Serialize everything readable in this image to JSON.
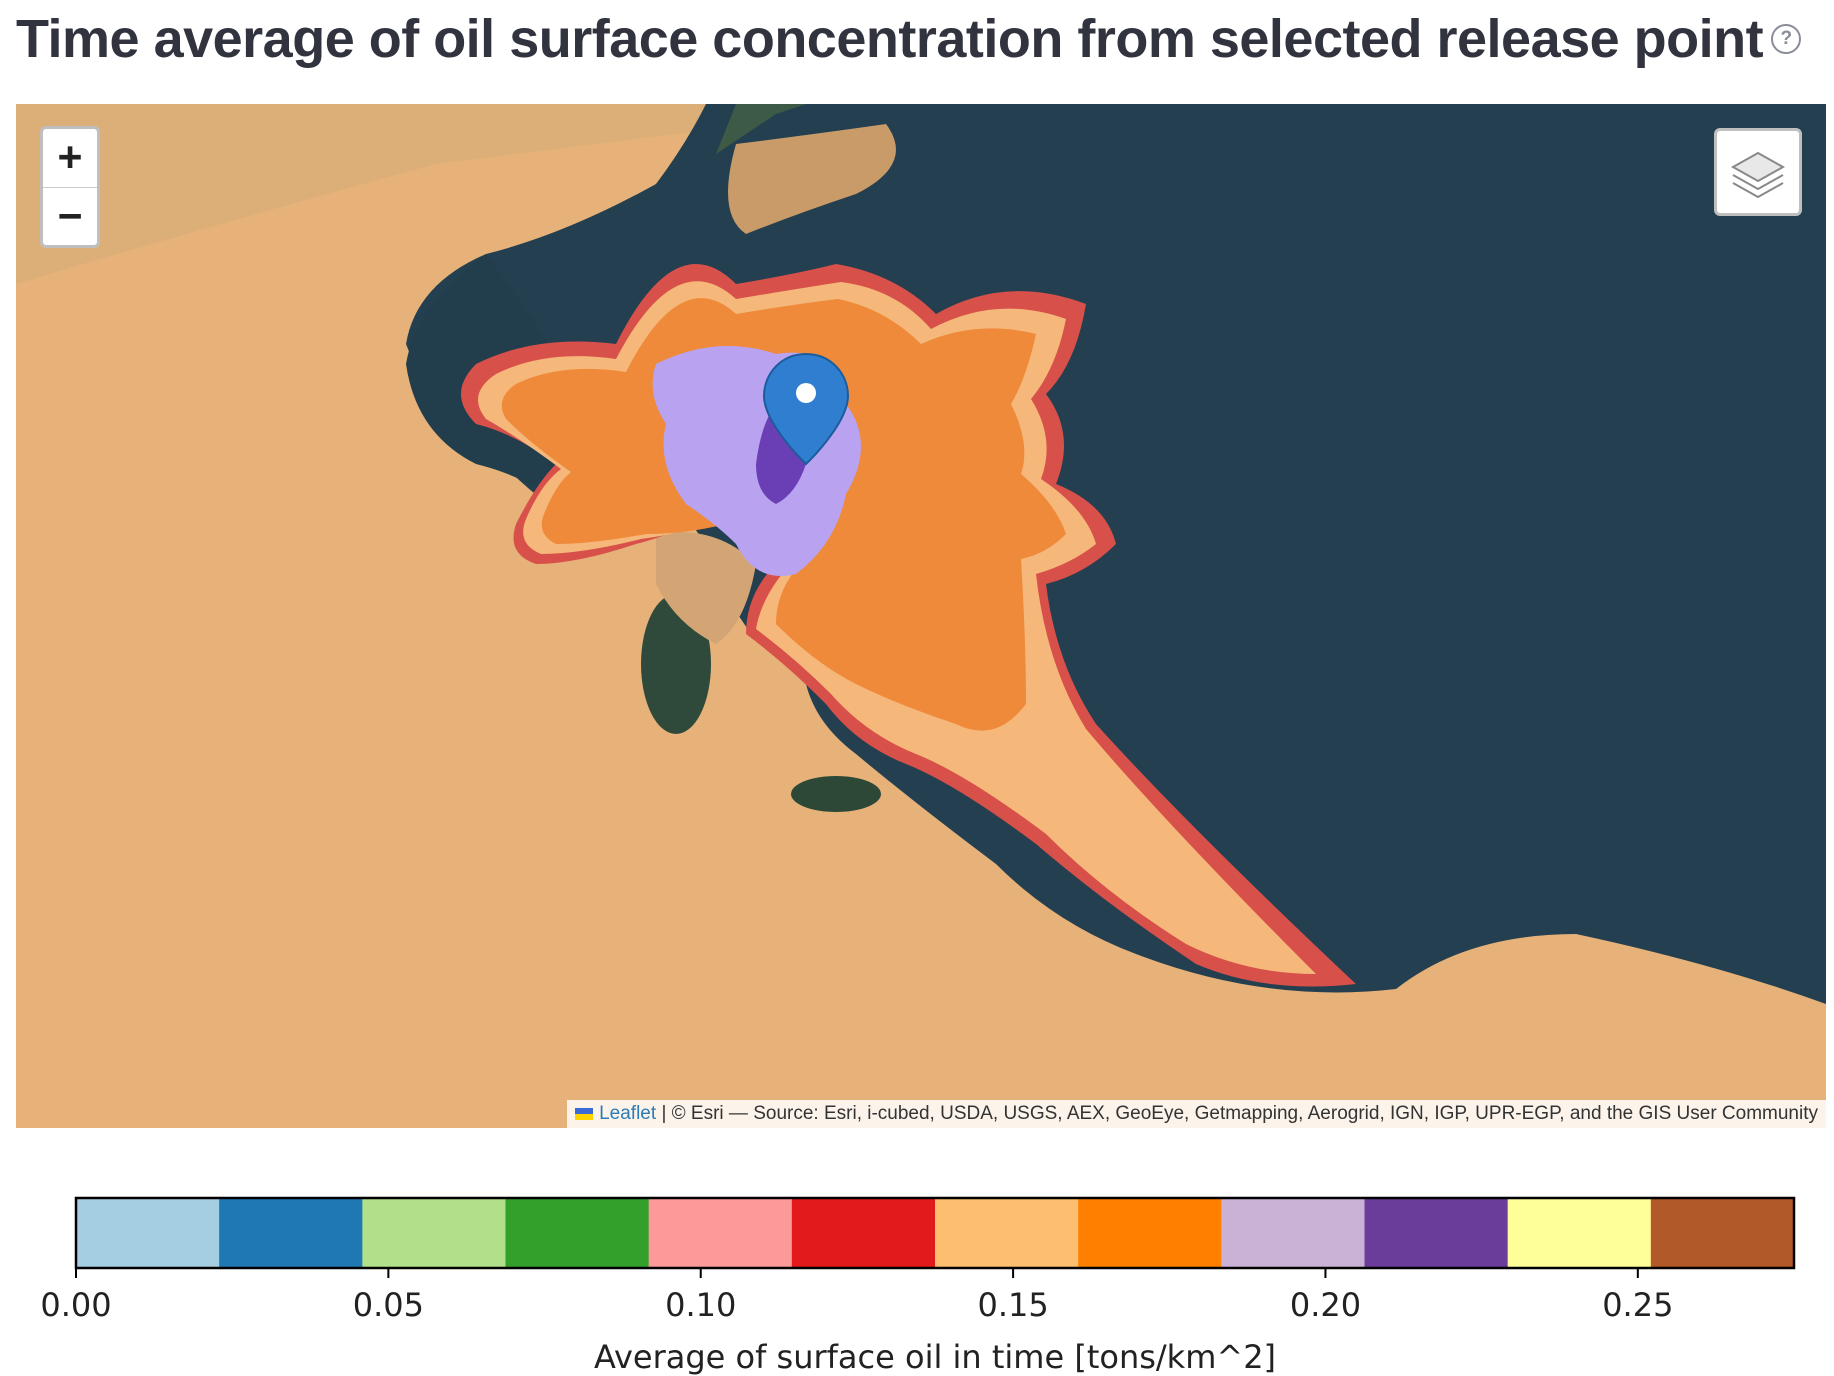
{
  "header": {
    "title": "Time average of oil surface concentration from selected release point",
    "help_icon": "question-circle-icon",
    "help_glyph": "?"
  },
  "map": {
    "zoom_in_label": "+",
    "zoom_out_label": "−",
    "layers_icon": "layers-icon",
    "marker_icon": "map-marker-icon",
    "attribution": {
      "leaflet_label": "Leaflet",
      "text": "| © Esri — Source: Esri, i-cubed, USDA, USGS, AEX, GeoEye, Getmapping, Aerogrid, IGN, IGP, UPR-EGP, and the GIS User Community"
    },
    "colors": {
      "sea": "#243f50",
      "land": "#e8b77e",
      "oil_orange": "#ee8a3a",
      "oil_light": "#f5b77a",
      "oil_red": "#d8504a",
      "oil_purple": "#b9a3f0",
      "oil_core": "#6a3fb5"
    }
  },
  "colorbar": {
    "ticks": [
      "0.00",
      "0.05",
      "0.10",
      "0.15",
      "0.20",
      "0.25"
    ],
    "tick_values": [
      0,
      0.05,
      0.1,
      0.15,
      0.2,
      0.25
    ],
    "range": [
      0,
      0.275
    ],
    "colors": [
      "#a6cee3",
      "#1f78b4",
      "#b2df8a",
      "#33a02c",
      "#fb9a99",
      "#e31a1c",
      "#fdbf6f",
      "#ff7f00",
      "#cab2d6",
      "#6a3d9a",
      "#ffff99",
      "#b15928"
    ],
    "label": "Average of surface oil in time [tons/km^2]"
  }
}
